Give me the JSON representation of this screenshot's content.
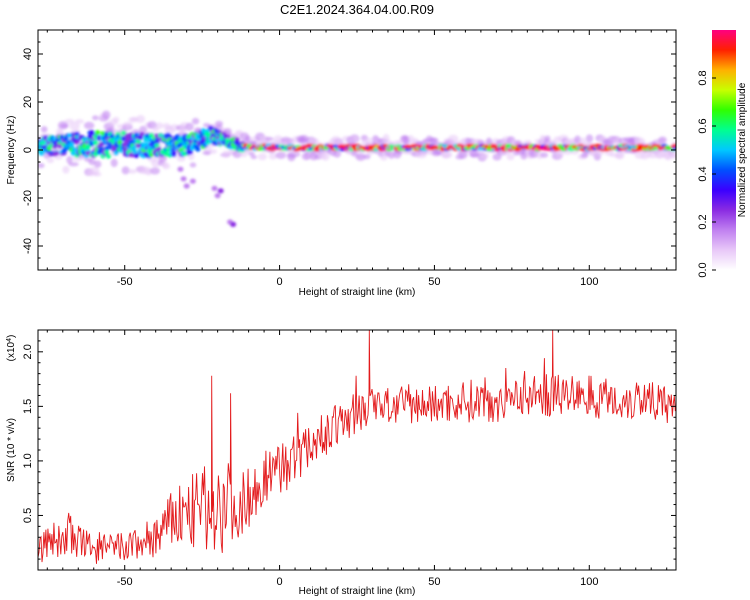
{
  "title": "C2E1.2024.364.04.00.R09",
  "chart_data": [
    {
      "type": "heatmap",
      "title": "C2E1.2024.364.04.00.R09",
      "xlabel": "Height of straight line (km)",
      "ylabel": "Frequency (Hz)",
      "xlim": [
        -78,
        128
      ],
      "ylim": [
        -50,
        50
      ],
      "xticks": [
        -50,
        0,
        50,
        100
      ],
      "yticks": [
        40,
        20,
        0,
        -20,
        -40
      ],
      "colorbar": {
        "label": "Normalized spectral amplitude",
        "range": [
          0,
          1
        ],
        "ticks": [
          0.0,
          0.2,
          0.4,
          0.6,
          0.8
        ],
        "colormap": [
          "#ffffff",
          "#e8c8f8",
          "#c080f0",
          "#8a2be2",
          "#3a00ff",
          "#0050ff",
          "#00c8ff",
          "#00ff90",
          "#30ff00",
          "#c8ff00",
          "#ffb000",
          "#ff2000",
          "#ff0080"
        ]
      },
      "streak": [
        {
          "x": -78,
          "freq": 1.5,
          "width": 5
        },
        {
          "x": -60,
          "freq": 2.5,
          "width": 8
        },
        {
          "x": -40,
          "freq": 2.0,
          "width": 7
        },
        {
          "x": -30,
          "freq": 2.0,
          "width": 6
        },
        {
          "x": -22,
          "freq": 6.0,
          "width": 5
        },
        {
          "x": -12,
          "freq": 1.5,
          "width": 3
        },
        {
          "x": 0,
          "freq": 1.0,
          "width": 2.5
        },
        {
          "x": 50,
          "freq": 1.0,
          "width": 2.5
        },
        {
          "x": 100,
          "freq": 1.0,
          "width": 2.5
        },
        {
          "x": 128,
          "freq": 1.0,
          "width": 2.5
        }
      ],
      "descending_tail": [
        {
          "x": -32,
          "freq": -8
        },
        {
          "x": -31,
          "freq": -12
        },
        {
          "x": -30,
          "freq": -15
        },
        {
          "x": -28,
          "freq": -13
        },
        {
          "x": -21,
          "freq": -16
        },
        {
          "x": -20,
          "freq": -19
        },
        {
          "x": -19,
          "freq": -17
        },
        {
          "x": -16,
          "freq": -30
        },
        {
          "x": -15,
          "freq": -31
        }
      ]
    },
    {
      "type": "line",
      "xlabel": "Height of straight line (km)",
      "ylabel": "SNR (10 * v/v)",
      "y_multiplier_label": "(x10",
      "y_multiplier_exp": "4",
      "y_multiplier_close": ")",
      "xlim": [
        -78,
        128
      ],
      "ylim": [
        0,
        2.2
      ],
      "xticks": [
        -50,
        0,
        50,
        100
      ],
      "yticks": [
        0.5,
        1.0,
        1.5,
        2.0
      ],
      "line_color": "#e31a1c",
      "series": [
        {
          "name": "SNR",
          "x": [
            -78,
            -70,
            -60,
            -50,
            -40,
            -33,
            -25,
            -18,
            -12,
            -5,
            0,
            5,
            10,
            15,
            20,
            25,
            30,
            40,
            50,
            60,
            70,
            80,
            90,
            100,
            110,
            120,
            128
          ],
          "y": [
            0.2,
            0.3,
            0.2,
            0.2,
            0.3,
            0.5,
            0.55,
            0.6,
            0.6,
            0.85,
            0.95,
            1.0,
            1.15,
            1.25,
            1.35,
            1.45,
            1.5,
            1.5,
            1.52,
            1.55,
            1.55,
            1.6,
            1.6,
            1.6,
            1.55,
            1.6,
            1.4
          ],
          "noise_amplitude": [
            0.15,
            0.2,
            0.15,
            0.15,
            0.2,
            0.3,
            0.4,
            0.45,
            0.3,
            0.25,
            0.25,
            0.25,
            0.2,
            0.2,
            0.2,
            0.2,
            0.2,
            0.18,
            0.18,
            0.2,
            0.2,
            0.2,
            0.2,
            0.2,
            0.2,
            0.2,
            0.2
          ]
        }
      ],
      "spikes": [
        {
          "x": -22,
          "y": 1.78
        },
        {
          "x": -16,
          "y": 1.62
        },
        {
          "x": 29,
          "y": 2.2
        },
        {
          "x": 88,
          "y": 2.2
        }
      ]
    }
  ]
}
